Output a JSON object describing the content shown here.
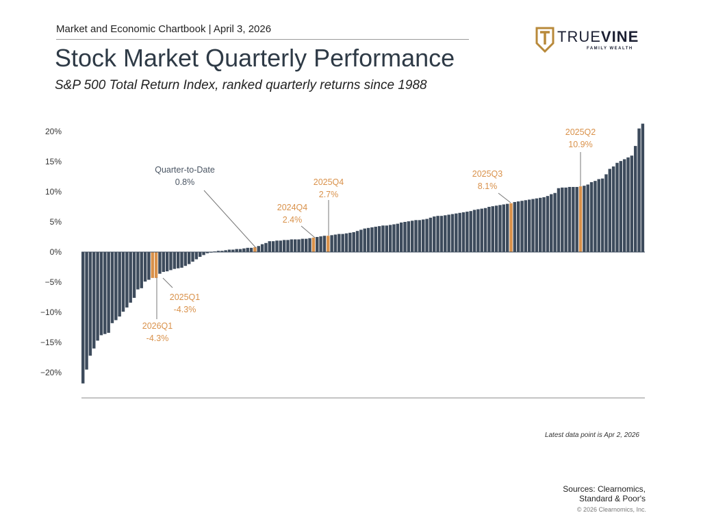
{
  "header": {
    "chartbook": "Market and Economic Chartbook | April 3, 2026",
    "title": "Stock Market Quarterly Performance",
    "subtitle": "S&P 500 Total Return Index, ranked quarterly returns since 1988"
  },
  "logo": {
    "name_light": "TRUE",
    "name_bold": "VINE",
    "tagline": "FAMILY WEALTH",
    "color": "#b8893a"
  },
  "chart_data": {
    "type": "bar",
    "title": "",
    "ylabel": "",
    "ylim": [
      -22,
      22
    ],
    "yticks": [
      20,
      15,
      10,
      5,
      0,
      -5,
      -10,
      -15,
      -20
    ],
    "ytick_labels": [
      "20%",
      "15%",
      "10%",
      "5%",
      "0%",
      "−5%",
      "−10%",
      "−15%",
      "−20%"
    ],
    "sorted": "ascending",
    "grid": false,
    "colors": {
      "bar": "#3d4b5c",
      "highlight": "#d9914a",
      "annotation_text": "#d9914a",
      "qtd_text": "#4a5563"
    },
    "values": [
      -21.8,
      -19.5,
      -17.2,
      -16.0,
      -14.7,
      -13.8,
      -13.6,
      -13.4,
      -11.8,
      -11.3,
      -10.7,
      -9.9,
      -9.2,
      -8.4,
      -7.6,
      -6.2,
      -6.0,
      -4.9,
      -4.6,
      -4.3,
      -4.3,
      -3.6,
      -3.3,
      -3.2,
      -3.0,
      -2.8,
      -2.7,
      -2.6,
      -2.3,
      -2.0,
      -1.6,
      -1.2,
      -0.8,
      -0.5,
      -0.2,
      -0.1,
      0.1,
      0.2,
      0.2,
      0.3,
      0.4,
      0.4,
      0.5,
      0.5,
      0.6,
      0.7,
      0.7,
      0.8,
      1.0,
      1.3,
      1.5,
      1.8,
      1.8,
      1.9,
      1.9,
      2.0,
      2.0,
      2.1,
      2.1,
      2.1,
      2.2,
      2.2,
      2.3,
      2.4,
      2.5,
      2.6,
      2.7,
      2.7,
      2.8,
      2.9,
      3.0,
      3.0,
      3.1,
      3.2,
      3.3,
      3.5,
      3.7,
      3.9,
      4.0,
      4.1,
      4.2,
      4.3,
      4.4,
      4.4,
      4.5,
      4.6,
      4.7,
      4.9,
      5.0,
      5.1,
      5.2,
      5.3,
      5.3,
      5.4,
      5.5,
      5.7,
      5.9,
      6.0,
      6.0,
      6.1,
      6.2,
      6.3,
      6.4,
      6.5,
      6.6,
      6.7,
      6.8,
      7.0,
      7.1,
      7.2,
      7.3,
      7.5,
      7.6,
      7.7,
      7.8,
      7.9,
      8.0,
      8.1,
      8.3,
      8.4,
      8.5,
      8.6,
      8.7,
      8.8,
      8.9,
      9.0,
      9.1,
      9.3,
      9.6,
      9.8,
      10.6,
      10.7,
      10.7,
      10.8,
      10.8,
      10.8,
      10.9,
      11.0,
      11.2,
      11.6,
      11.8,
      12.1,
      12.2,
      12.9,
      13.8,
      14.2,
      14.8,
      15.1,
      15.4,
      15.7,
      16.0,
      17.6,
      20.5,
      21.3
    ],
    "annotations": [
      {
        "label": "2026Q1",
        "value_label": "-4.3%",
        "index": 19,
        "highlight": true
      },
      {
        "label": "2025Q1",
        "value_label": "-4.3%",
        "index": 20,
        "highlight": true
      },
      {
        "label": "Quarter-to-Date",
        "value_label": "0.8%",
        "index": 47,
        "highlight": true
      },
      {
        "label": "2024Q4",
        "value_label": "2.4%",
        "index": 63,
        "highlight": true
      },
      {
        "label": "2025Q4",
        "value_label": "2.7%",
        "index": 67,
        "highlight": true
      },
      {
        "label": "2025Q3",
        "value_label": "8.1%",
        "index": 117,
        "highlight": true
      },
      {
        "label": "2025Q2",
        "value_label": "10.9%",
        "index": 136,
        "highlight": true
      }
    ]
  },
  "footer": {
    "note": "Latest data point is Apr 2, 2026",
    "sources_1": "Sources: Clearnomics,",
    "sources_2": "Standard & Poor's",
    "copyright": "© 2026 Clearnomics, Inc."
  }
}
